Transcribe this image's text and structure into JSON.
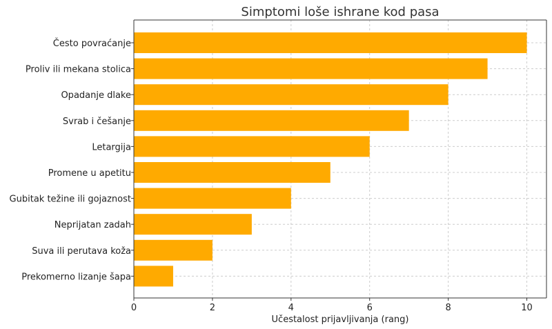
{
  "chart_data": {
    "type": "bar",
    "orientation": "horizontal",
    "title": "Simptomi loše ishrane kod pasa",
    "xlabel": "Učestalost prijavljivanja (rang)",
    "ylabel": "",
    "categories": [
      "Često povraćanje",
      "Proliv ili mekana stolica",
      "Opadanje dlake",
      "Svrab i češanje",
      "Letargija",
      "Promene u apetitu",
      "Gubitak težine ili gojaznost",
      "Neprijatan zadah",
      "Suva ili perutava koža",
      "Prekomerno lizanje šapa"
    ],
    "values": [
      10,
      9,
      8,
      7,
      6,
      5,
      4,
      3,
      2,
      1
    ],
    "xlim": [
      0,
      10.5
    ],
    "xticks": [
      0,
      2,
      4,
      6,
      8,
      10
    ],
    "grid": true,
    "bar_color": "#FFAA00"
  }
}
